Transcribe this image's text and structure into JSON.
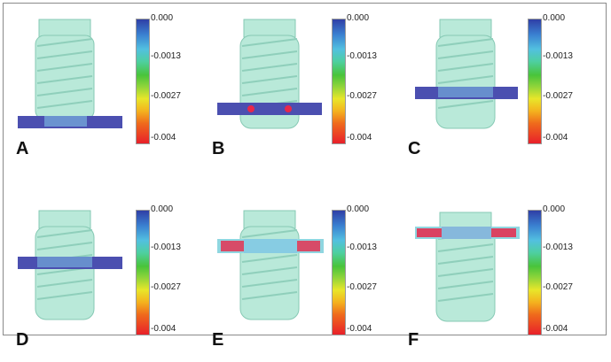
{
  "scale_labels": [
    "0.000",
    "-0.0013",
    "-0.0027",
    "-0.004"
  ],
  "colors": {
    "implant": "#b9e9d9",
    "implant_edge": "#86c9b4",
    "bone_plate": "#4b4fb0",
    "stress_red": "#e8284a",
    "scale_top": "#2f3fa6",
    "scale_bottom": "#e8202a"
  },
  "panels": [
    {
      "letter": "A",
      "plate_level": "bottom",
      "stress": "low"
    },
    {
      "letter": "B",
      "plate_level": "lower-middle",
      "stress": "low"
    },
    {
      "letter": "C",
      "plate_level": "upper-middle",
      "stress": "low"
    },
    {
      "letter": "D",
      "plate_level": "middle",
      "stress": "low"
    },
    {
      "letter": "E",
      "plate_level": "upper",
      "stress": "high"
    },
    {
      "letter": "F",
      "plate_level": "top",
      "stress": "high"
    }
  ]
}
